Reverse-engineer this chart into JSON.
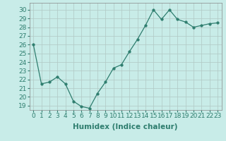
{
  "title": "",
  "xlabel": "Humidex (Indice chaleur)",
  "x": [
    0,
    1,
    2,
    3,
    4,
    5,
    6,
    7,
    8,
    9,
    10,
    11,
    12,
    13,
    14,
    15,
    16,
    17,
    18,
    19,
    20,
    21,
    22,
    23
  ],
  "y": [
    26.0,
    21.5,
    21.7,
    22.3,
    21.5,
    19.5,
    18.9,
    18.7,
    20.4,
    21.7,
    23.3,
    23.7,
    25.2,
    26.6,
    28.2,
    30.0,
    28.9,
    30.0,
    28.9,
    28.6,
    28.0,
    28.2,
    28.4,
    28.5
  ],
  "line_color": "#2e7d6e",
  "marker_size": 2.5,
  "bg_color": "#c8ece8",
  "grid_color": "#b0c8c4",
  "ylim_min": 18.5,
  "ylim_max": 30.8,
  "yticks": [
    19,
    20,
    21,
    22,
    23,
    24,
    25,
    26,
    27,
    28,
    29,
    30
  ],
  "xticks": [
    0,
    1,
    2,
    3,
    4,
    5,
    6,
    7,
    8,
    9,
    10,
    11,
    12,
    13,
    14,
    15,
    16,
    17,
    18,
    19,
    20,
    21,
    22,
    23
  ],
  "tick_label_fontsize": 6.5,
  "xlabel_fontsize": 7.5,
  "spine_color": "#888888",
  "tick_color": "#2e7d6e"
}
